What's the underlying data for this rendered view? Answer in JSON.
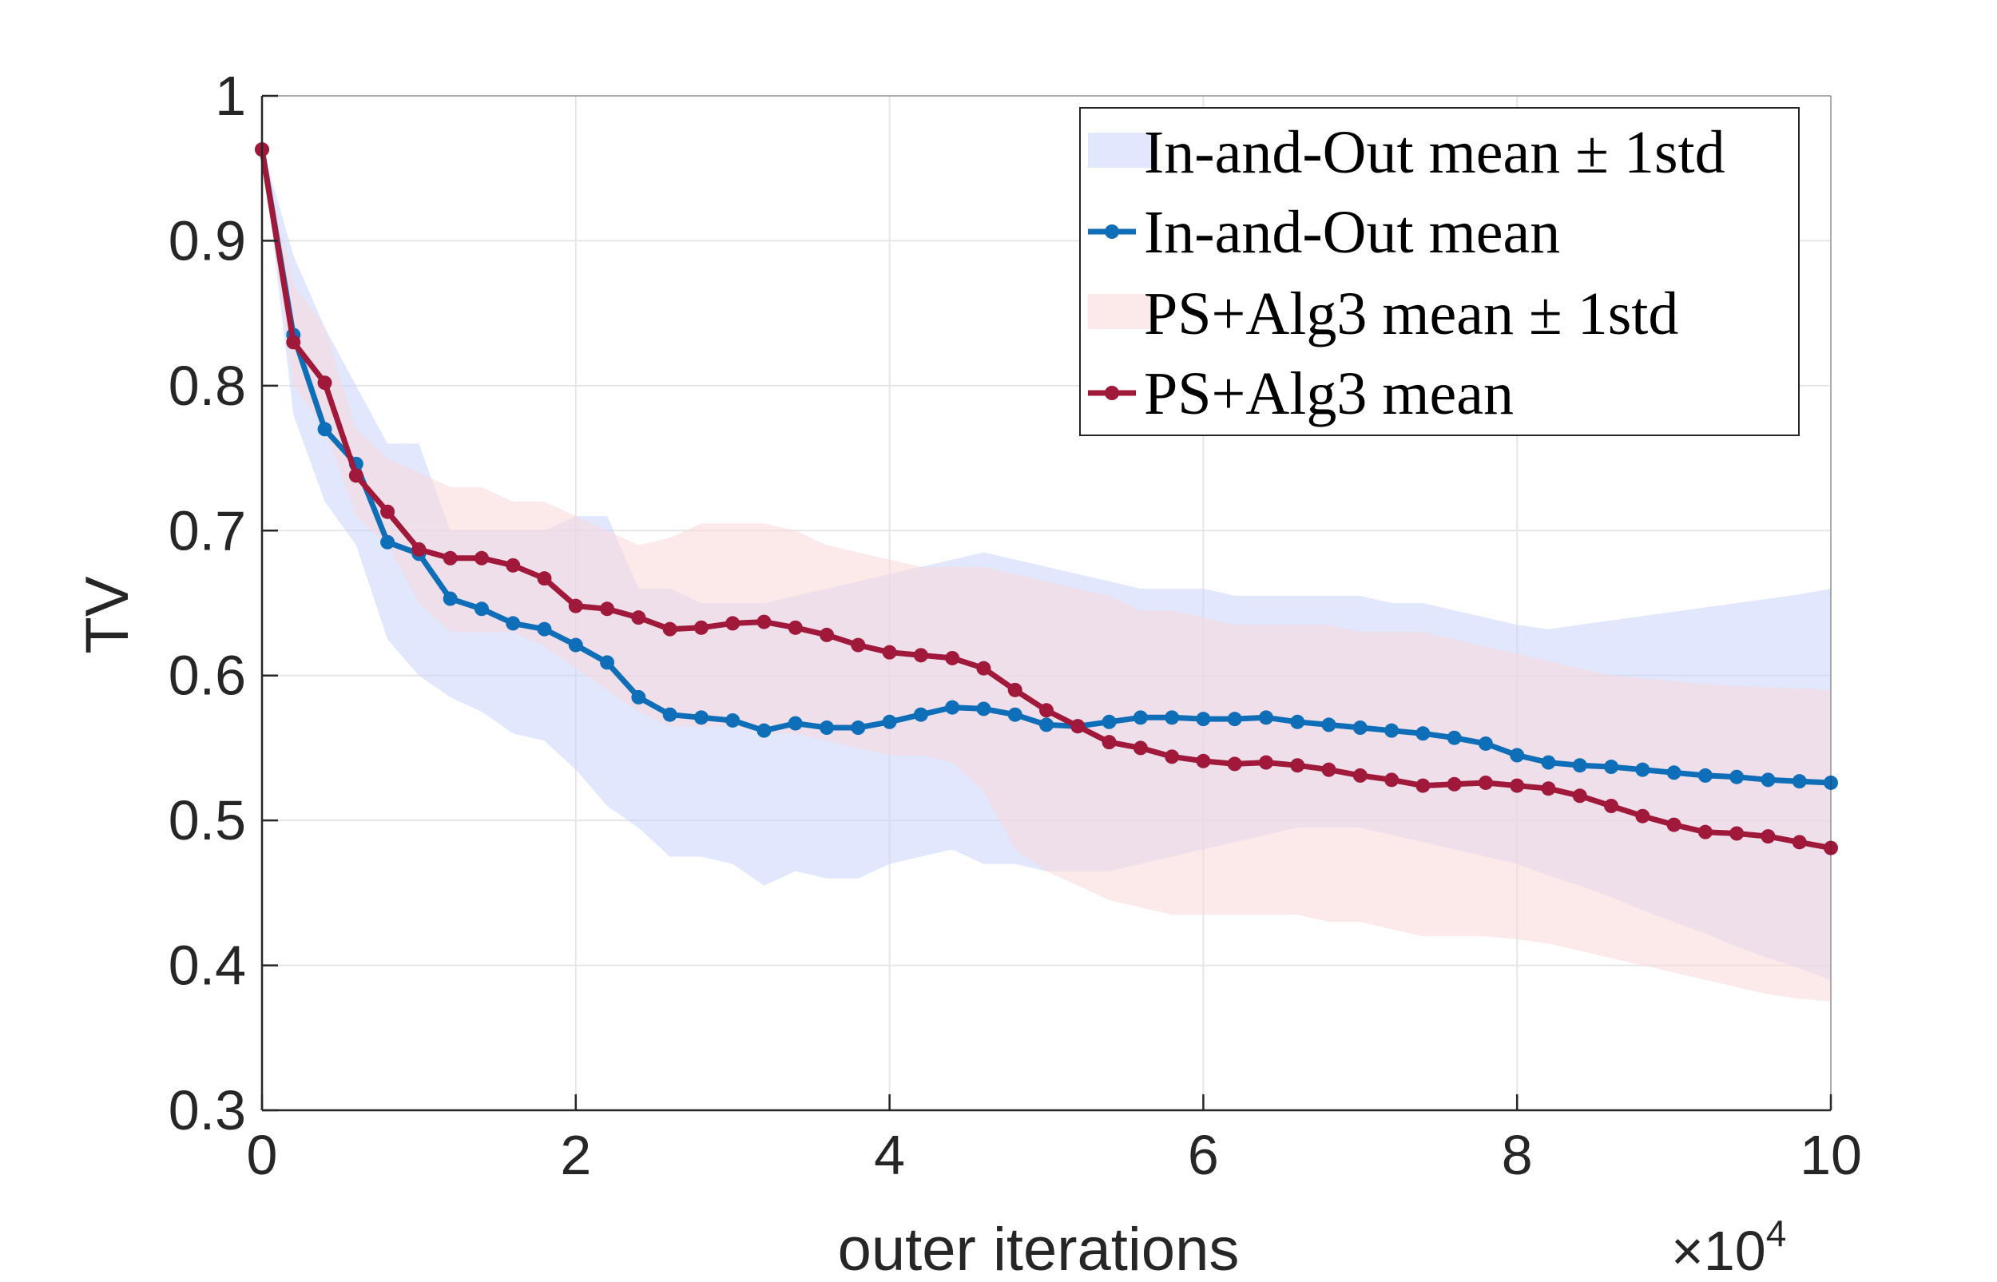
{
  "chart_data": {
    "type": "line",
    "xlabel": "outer iterations",
    "ylabel": "TV",
    "x_exponent_label": "×10",
    "x_exponent_power": "4",
    "xlim": [
      0,
      10
    ],
    "ylim": [
      0.3,
      1
    ],
    "xticks": [
      0,
      2,
      4,
      6,
      8,
      10
    ],
    "xtick_labels": [
      "0",
      "2",
      "4",
      "6",
      "8",
      "10"
    ],
    "yticks": [
      0.3,
      0.4,
      0.5,
      0.6,
      0.7,
      0.8,
      0.9,
      1
    ],
    "ytick_labels": [
      "0.3",
      "0.4",
      "0.5",
      "0.6",
      "0.7",
      "0.8",
      "0.9",
      "1"
    ],
    "grid": true,
    "legend_position": "top-right",
    "x": [
      0,
      0.2,
      0.4,
      0.6,
      0.8,
      1.0,
      1.2,
      1.4,
      1.6,
      1.8,
      2.0,
      2.2,
      2.4,
      2.6,
      2.8,
      3.0,
      3.2,
      3.4,
      3.6,
      3.8,
      4.0,
      4.2,
      4.4,
      4.6,
      4.8,
      5.0,
      5.2,
      5.4,
      5.6,
      5.8,
      6.0,
      6.2,
      6.4,
      6.6,
      6.8,
      7.0,
      7.2,
      7.4,
      7.6,
      7.8,
      8.0,
      8.2,
      8.4,
      8.6,
      8.8,
      9.0,
      9.2,
      9.4,
      9.6,
      9.8,
      10.0
    ],
    "bands": [
      {
        "name": "In-and-Out mean ± 1std",
        "color": "#c9d4fb",
        "upper": [
          0.965,
          0.89,
          0.84,
          0.8,
          0.76,
          0.76,
          0.7,
          0.7,
          0.7,
          0.7,
          0.71,
          0.71,
          0.66,
          0.66,
          0.65,
          0.65,
          0.65,
          0.655,
          0.66,
          0.665,
          0.67,
          0.675,
          0.68,
          0.685,
          0.68,
          0.675,
          0.67,
          0.665,
          0.66,
          0.66,
          0.66,
          0.655,
          0.655,
          0.655,
          0.655,
          0.655,
          0.65,
          0.65,
          0.645,
          0.64,
          0.635,
          0.632,
          0.635,
          0.638,
          0.641,
          0.644,
          0.647,
          0.65,
          0.653,
          0.656,
          0.66
        ],
        "lower": [
          0.965,
          0.78,
          0.72,
          0.69,
          0.625,
          0.6,
          0.585,
          0.575,
          0.56,
          0.555,
          0.535,
          0.51,
          0.495,
          0.475,
          0.475,
          0.47,
          0.455,
          0.465,
          0.46,
          0.46,
          0.47,
          0.475,
          0.48,
          0.47,
          0.47,
          0.465,
          0.465,
          0.465,
          0.47,
          0.475,
          0.48,
          0.485,
          0.49,
          0.495,
          0.495,
          0.495,
          0.49,
          0.485,
          0.48,
          0.475,
          0.47,
          0.462,
          0.455,
          0.447,
          0.438,
          0.43,
          0.422,
          0.413,
          0.405,
          0.398,
          0.39
        ]
      },
      {
        "name": "PS+Alg3 mean ± 1std",
        "color": "#f9d8da",
        "upper": [
          0.965,
          0.87,
          0.84,
          0.77,
          0.75,
          0.74,
          0.73,
          0.73,
          0.72,
          0.72,
          0.71,
          0.7,
          0.69,
          0.695,
          0.705,
          0.705,
          0.705,
          0.7,
          0.69,
          0.685,
          0.68,
          0.675,
          0.675,
          0.675,
          0.67,
          0.665,
          0.66,
          0.655,
          0.645,
          0.645,
          0.64,
          0.635,
          0.635,
          0.635,
          0.635,
          0.63,
          0.63,
          0.63,
          0.625,
          0.62,
          0.615,
          0.61,
          0.605,
          0.6,
          0.598,
          0.596,
          0.594,
          0.593,
          0.592,
          0.591,
          0.59
        ],
        "lower": [
          0.965,
          0.8,
          0.77,
          0.71,
          0.69,
          0.65,
          0.63,
          0.63,
          0.63,
          0.62,
          0.605,
          0.59,
          0.575,
          0.565,
          0.565,
          0.565,
          0.56,
          0.56,
          0.555,
          0.55,
          0.545,
          0.545,
          0.54,
          0.52,
          0.48,
          0.465,
          0.455,
          0.445,
          0.44,
          0.435,
          0.435,
          0.435,
          0.435,
          0.435,
          0.43,
          0.43,
          0.425,
          0.42,
          0.42,
          0.42,
          0.418,
          0.415,
          0.41,
          0.405,
          0.4,
          0.395,
          0.39,
          0.385,
          0.38,
          0.377,
          0.375
        ]
      }
    ],
    "series": [
      {
        "name": "In-and-Out mean",
        "color": "#0f6eb8",
        "values": [
          0.963,
          0.835,
          0.77,
          0.746,
          0.692,
          0.684,
          0.653,
          0.646,
          0.636,
          0.632,
          0.621,
          0.609,
          0.585,
          0.573,
          0.571,
          0.569,
          0.562,
          0.567,
          0.564,
          0.564,
          0.568,
          0.573,
          0.578,
          0.577,
          0.573,
          0.566,
          0.565,
          0.568,
          0.571,
          0.571,
          0.57,
          0.57,
          0.571,
          0.568,
          0.566,
          0.564,
          0.562,
          0.56,
          0.557,
          0.553,
          0.545,
          0.54,
          0.538,
          0.537,
          0.535,
          0.533,
          0.531,
          0.53,
          0.528,
          0.527,
          0.526
        ]
      },
      {
        "name": "PS+Alg3 mean",
        "color": "#a0183a",
        "values": [
          0.963,
          0.83,
          0.802,
          0.738,
          0.713,
          0.687,
          0.681,
          0.681,
          0.676,
          0.667,
          0.648,
          0.646,
          0.64,
          0.632,
          0.633,
          0.636,
          0.637,
          0.633,
          0.628,
          0.621,
          0.616,
          0.614,
          0.612,
          0.605,
          0.59,
          0.576,
          0.565,
          0.554,
          0.55,
          0.544,
          0.541,
          0.539,
          0.54,
          0.538,
          0.535,
          0.531,
          0.528,
          0.524,
          0.525,
          0.526,
          0.524,
          0.522,
          0.517,
          0.51,
          0.503,
          0.497,
          0.492,
          0.491,
          0.489,
          0.485,
          0.481
        ]
      }
    ]
  }
}
